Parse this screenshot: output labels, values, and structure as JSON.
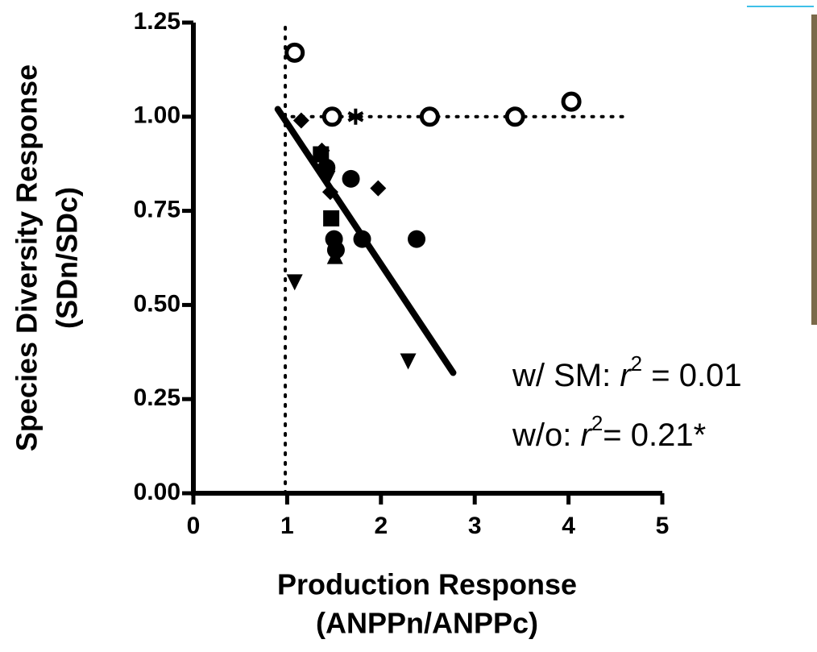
{
  "chart_data": {
    "type": "scatter",
    "x_label": [
      "Production Response",
      "(ANPPn/ANPPc)"
    ],
    "y_label": [
      "Species Diversity Response",
      "(SDn/SDc)"
    ],
    "xlim": [
      0,
      5
    ],
    "ylim": [
      0,
      1.25
    ],
    "xticks": [
      0,
      1,
      2,
      3,
      4,
      5
    ],
    "yticks": [
      {
        "value": 0,
        "label": "0.00"
      },
      {
        "value": 0.25,
        "label": "0.25"
      },
      {
        "value": 0.5,
        "label": "0.50"
      },
      {
        "value": 0.75,
        "label": "0.75"
      },
      {
        "value": 1,
        "label": "1.00"
      },
      {
        "value": 1.25,
        "label": "1.25"
      }
    ],
    "color": "#000000",
    "series": [
      {
        "marker": "open-circle",
        "x": [
          1.08,
          1.48,
          2.52,
          3.43,
          4.03
        ],
        "values": [
          1.17,
          1.0,
          1.0,
          1.0,
          1.04
        ]
      },
      {
        "marker": "asterisk",
        "x": [
          1.73
        ],
        "values": [
          1.0
        ]
      },
      {
        "marker": "circle",
        "x": [
          1.42,
          1.68,
          1.5,
          1.52,
          1.8,
          2.38
        ],
        "values": [
          0.865,
          0.835,
          0.675,
          0.646,
          0.675,
          0.675
        ]
      },
      {
        "marker": "diamond",
        "x": [
          1.15,
          1.37,
          1.46,
          1.97
        ],
        "values": [
          0.99,
          0.91,
          0.8,
          0.81
        ]
      },
      {
        "marker": "square",
        "x": [
          1.36,
          1.47
        ],
        "values": [
          0.9,
          0.73
        ]
      },
      {
        "marker": "triangle-up",
        "x": [
          1.51
        ],
        "values": [
          0.63
        ]
      },
      {
        "marker": "triangle-down",
        "x": [
          1.08,
          2.29,
          1.43
        ],
        "values": [
          0.56,
          0.35,
          0.835
        ]
      }
    ],
    "fit": {
      "x": [
        0.9,
        2.77
      ],
      "values": [
        1.02,
        0.32
      ]
    },
    "hline": {
      "x": [
        0.95,
        4.65
      ],
      "values": [
        1,
        1
      ]
    },
    "vline": {
      "x": [
        0.98,
        0.98
      ],
      "values": [
        0,
        1.25
      ]
    },
    "annotations": [
      [
        "w/ SM: ",
        "r",
        "2",
        " = 0.01"
      ],
      [
        "w/o: ",
        "r",
        "2",
        "= 0.21*"
      ]
    ]
  }
}
